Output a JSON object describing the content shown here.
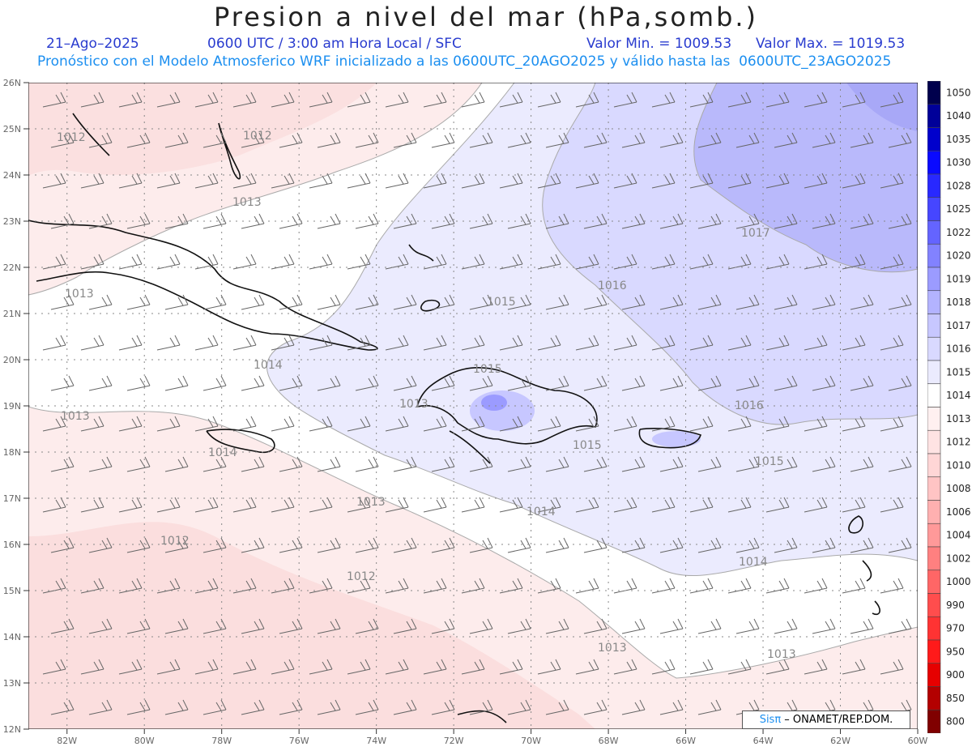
{
  "header": {
    "title": "Presion a nivel del mar (hPa,somb.)",
    "date": "21–Ago–2025",
    "time_info": "0600 UTC / 3:00 am Hora Local / SFC",
    "min_label": "Valor Min. = 1009.53",
    "max_label": "Valor Max. = 1019.53",
    "forecast_note": "Pronóstico con el Modelo Atmosferico WRF inicializado a las 0600UTC_20AGO2025 y válido hasta las  0600UTC_23AGO2025"
  },
  "axes": {
    "lon_labels": [
      "82W",
      "80W",
      "78W",
      "76W",
      "74W",
      "72W",
      "70W",
      "68W",
      "66W",
      "64W",
      "62W",
      "60W"
    ],
    "lat_labels": [
      "12N",
      "13N",
      "14N",
      "15N",
      "16N",
      "17N",
      "18N",
      "19N",
      "20N",
      "21N",
      "22N",
      "23N",
      "24N",
      "25N",
      "26N"
    ]
  },
  "contour_labels": [
    "1012",
    "1012",
    "1013",
    "1013",
    "1013",
    "1014",
    "1015",
    "1016",
    "1017",
    "1015",
    "1013",
    "1014",
    "1016",
    "1015",
    "1015",
    "1013",
    "1014",
    "1012",
    "1012",
    "1013",
    "1014",
    "1013"
  ],
  "legend": {
    "levels": [
      "1050",
      "1040",
      "1035",
      "1030",
      "1028",
      "1025",
      "1022",
      "1020",
      "1019",
      "1018",
      "1017",
      "1016",
      "1015",
      "1014",
      "1013",
      "1012",
      "1010",
      "1008",
      "1006",
      "1004",
      "1002",
      "1000",
      "990",
      "970",
      "950",
      "900",
      "850",
      "800"
    ],
    "colors": [
      "#00004d",
      "#000099",
      "#0000cc",
      "#0a0aff",
      "#2828ff",
      "#4646ff",
      "#6464ff",
      "#8282ff",
      "#9b9bff",
      "#b3b3ff",
      "#c7c7ff",
      "#d9d9ff",
      "#ebebfe",
      "#ffffff",
      "#fff0f0",
      "#ffe3e3",
      "#ffd6d6",
      "#ffc4c4",
      "#ffb0b0",
      "#ff9999",
      "#ff8080",
      "#ff6666",
      "#ff4d4d",
      "#ff3333",
      "#ff1a1a",
      "#e60000",
      "#b30000",
      "#800000"
    ]
  },
  "credit": {
    "brand": "Sisπ",
    "text": " – ONAMET/REP.DOM."
  }
}
